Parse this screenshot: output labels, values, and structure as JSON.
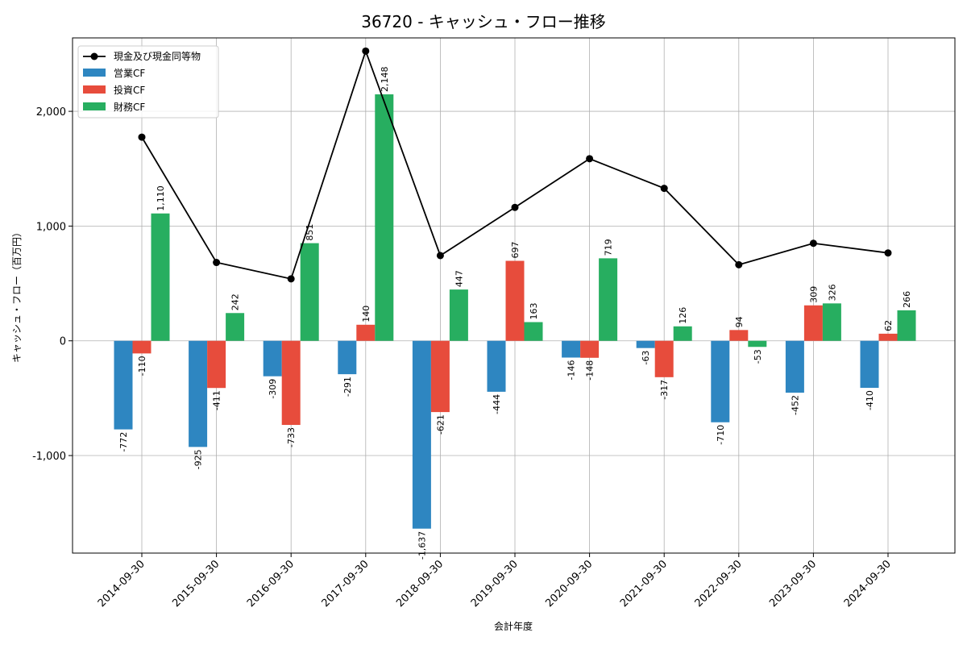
{
  "chart_data": {
    "type": "bar",
    "title": "36720 - キャッシュ・フロー推移",
    "xlabel": "会計年度",
    "ylabel": "キャッシュ・フロー（百万円）",
    "ylim": [
      -1850,
      2640
    ],
    "yticks": [
      -1000,
      0,
      1000,
      2000
    ],
    "ytick_labels": [
      "-1,000",
      "0",
      "1,000",
      "2,000"
    ],
    "grid": true,
    "legend_position": "top-left",
    "categories": [
      "2014-09-30",
      "2015-09-30",
      "2016-09-30",
      "2017-09-30",
      "2018-09-30",
      "2019-09-30",
      "2020-09-30",
      "2021-09-30",
      "2022-09-30",
      "2023-09-30",
      "2024-09-30"
    ],
    "series": [
      {
        "name": "営業CF",
        "kind": "bar",
        "color": "#2e86c1",
        "values": [
          -772,
          -925,
          -309,
          -291,
          -1637,
          -444,
          -146,
          -63,
          -710,
          -452,
          -410
        ],
        "labels": [
          "-772",
          "-925",
          "-309",
          "-291",
          "-1,637",
          "-444",
          "-146",
          "-63",
          "-710",
          "-452",
          "-410"
        ]
      },
      {
        "name": "投資CF",
        "kind": "bar",
        "color": "#e74c3c",
        "values": [
          -110,
          -411,
          -733,
          140,
          -621,
          697,
          -148,
          -317,
          94,
          309,
          62
        ],
        "labels": [
          "-110",
          "-411",
          "-733",
          "140",
          "-621",
          "697",
          "-148",
          "-317",
          "94",
          "309",
          "62"
        ]
      },
      {
        "name": "財務CF",
        "kind": "bar",
        "color": "#27ae60",
        "values": [
          1110,
          242,
          851,
          2148,
          447,
          163,
          719,
          126,
          -53,
          326,
          266
        ],
        "labels": [
          "1,110",
          "242",
          "851",
          "2,148",
          "447",
          "163",
          "719",
          "126",
          "-53",
          "326",
          "266"
        ]
      },
      {
        "name": "現金及び現金同等物",
        "kind": "line",
        "color": "#000000",
        "values": [
          1775,
          683,
          540,
          2525,
          743,
          1163,
          1587,
          1329,
          663,
          850,
          766
        ]
      }
    ]
  }
}
